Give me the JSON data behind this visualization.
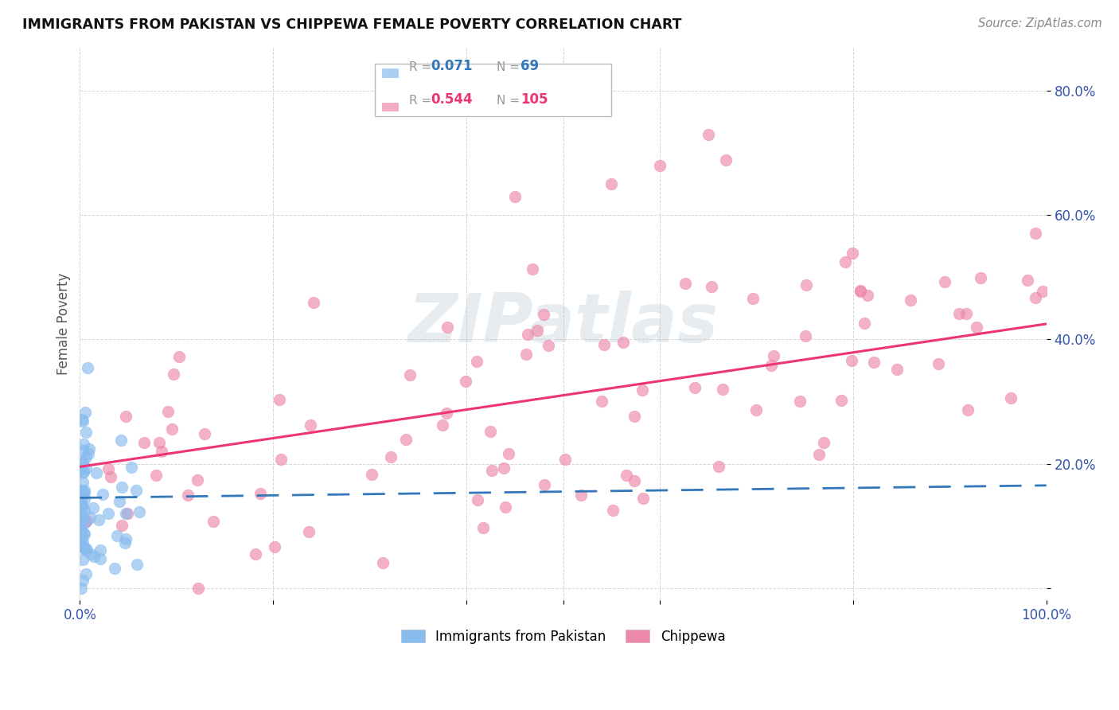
{
  "title": "IMMIGRANTS FROM PAKISTAN VS CHIPPEWA FEMALE POVERTY CORRELATION CHART",
  "source": "Source: ZipAtlas.com",
  "ylabel_label": "Female Poverty",
  "x_min": 0.0,
  "x_max": 1.0,
  "y_min": -0.02,
  "y_max": 0.87,
  "y_ticks": [
    0.0,
    0.2,
    0.4,
    0.6,
    0.8
  ],
  "y_tick_labels": [
    "",
    "20.0%",
    "40.0%",
    "60.0%",
    "80.0%"
  ],
  "grid_color": "#cccccc",
  "background_color": "#ffffff",
  "color_pakistan": "#88bbee",
  "color_chippewa": "#ee88aa",
  "trendline_pakistan_color": "#3377bb",
  "trendline_chippewa_color": "#ee3377",
  "legend_r1": "0.071",
  "legend_n1": "69",
  "legend_r2": "0.544",
  "legend_n2": "105"
}
